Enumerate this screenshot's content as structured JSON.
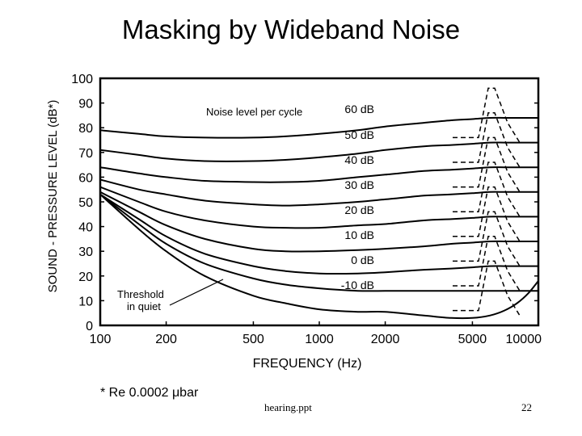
{
  "slide": {
    "title": "Masking by Wideband Noise",
    "footnote": "* Re 0.0002 μbar",
    "file_name": "hearing.ppt",
    "page_number": "22"
  },
  "chart_data": {
    "type": "line",
    "title": "",
    "xlabel": "FREQUENCY (Hz)",
    "ylabel": "SOUND - PRESSURE LEVEL (dB*)",
    "x_scale": "log",
    "x_ticks": [
      100,
      200,
      500,
      1000,
      2000,
      5000,
      10000
    ],
    "x_tick_labels": [
      "100",
      "200",
      "500",
      "1000",
      "2000",
      "5000",
      "10000"
    ],
    "y_ticks": [
      0,
      10,
      20,
      30,
      40,
      50,
      60,
      70,
      80,
      90,
      100
    ],
    "y_tick_labels": [
      "0",
      "10",
      "20",
      "30",
      "40",
      "50",
      "60",
      "70",
      "80",
      "90",
      "100"
    ],
    "xlim": [
      100,
      10000
    ],
    "ylim": [
      0,
      100
    ],
    "grid": false,
    "header_label": "Noise level per cycle",
    "annotation": "Threshold\nin quiet",
    "x": [
      100,
      150,
      200,
      300,
      500,
      700,
      1000,
      1500,
      2000,
      3000,
      4000,
      5000,
      6000,
      7000,
      8000,
      9000,
      10000
    ],
    "series": [
      {
        "name": "60 dB",
        "values": [
          79,
          77.5,
          76.5,
          76,
          76,
          76.5,
          77.5,
          79,
          80.5,
          82,
          83,
          83.5,
          84,
          84,
          84,
          84,
          84
        ]
      },
      {
        "name": "50 dB",
        "values": [
          71,
          69,
          67.5,
          66.5,
          66.5,
          67,
          68,
          69.5,
          71,
          72.5,
          73,
          73.5,
          74,
          74,
          74,
          74,
          74
        ]
      },
      {
        "name": "40 dB",
        "values": [
          64,
          61.5,
          60,
          58.5,
          58,
          58,
          58.5,
          60,
          61,
          62.5,
          63,
          63.5,
          64,
          64,
          64,
          64,
          64
        ]
      },
      {
        "name": "30 dB",
        "values": [
          59,
          55,
          53,
          50.5,
          49,
          48.5,
          49,
          50,
          51,
          52.5,
          53,
          53.5,
          54,
          54,
          54,
          54,
          54
        ]
      },
      {
        "name": "20 dB",
        "values": [
          56,
          50,
          46,
          42.5,
          40,
          39.5,
          39.5,
          40.5,
          41,
          42.5,
          43,
          43.5,
          44,
          44,
          44,
          44,
          44
        ]
      },
      {
        "name": "10 dB",
        "values": [
          54,
          46,
          40.5,
          35,
          31,
          30,
          30,
          30.5,
          31,
          32,
          33,
          33.5,
          34,
          34,
          34,
          34,
          34
        ]
      },
      {
        "name": "0 dB",
        "values": [
          53,
          43,
          36,
          29,
          24,
          22,
          21,
          21,
          21.5,
          22.5,
          23,
          23.5,
          24,
          24,
          24,
          24,
          24
        ]
      },
      {
        "name": "-10 dB",
        "values": [
          53,
          41,
          33,
          25,
          19,
          16.5,
          15,
          14,
          14,
          14,
          14,
          14,
          14,
          14,
          14,
          14,
          14
        ]
      },
      {
        "name": "Threshold in quiet",
        "values": [
          53,
          39,
          30,
          20,
          12,
          9,
          6.5,
          5.5,
          5.5,
          4,
          3,
          3,
          4,
          6,
          9,
          13,
          18
        ]
      }
    ],
    "curve_labels": [
      "60 dB",
      "50 dB",
      "40 dB",
      "30 dB",
      "20 dB",
      "10 dB",
      "0 dB",
      "-10 dB"
    ],
    "series_color": "#000000"
  }
}
